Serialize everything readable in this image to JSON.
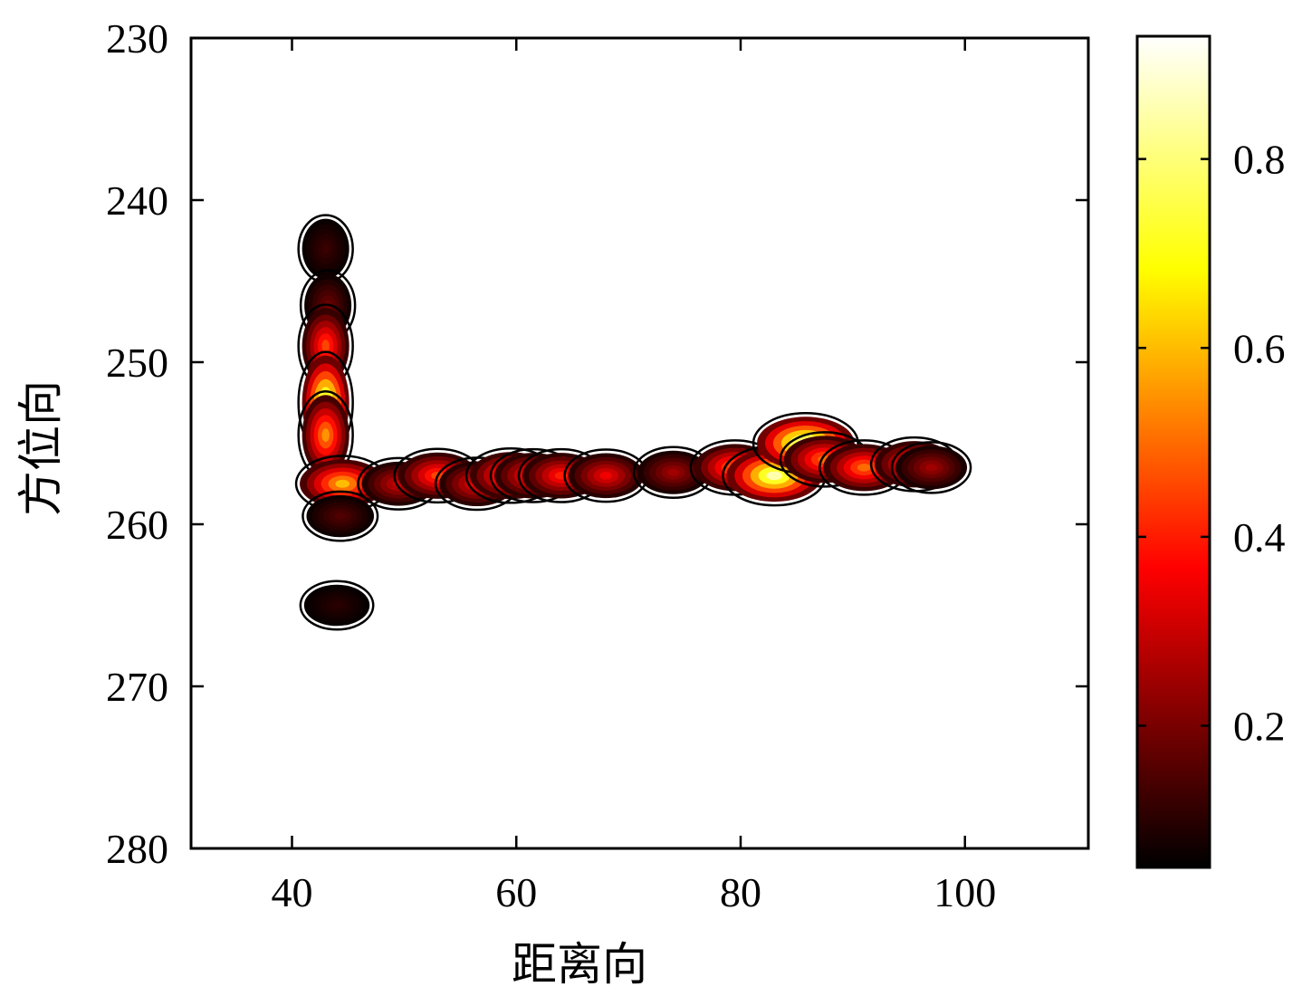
{
  "chart_data": {
    "type": "heatmap",
    "title": "",
    "xlabel": "距离向",
    "ylabel": "方位向",
    "xlim": [
      31,
      111
    ],
    "ylim": [
      230,
      280
    ],
    "y_reversed": true,
    "xticks": [
      40,
      60,
      80,
      100
    ],
    "yticks": [
      230,
      240,
      250,
      260,
      270,
      280
    ],
    "colorbar": {
      "colormap": "hot",
      "range": [
        0.05,
        0.93
      ],
      "ticks": [
        0.2,
        0.4,
        0.6,
        0.8
      ],
      "tick_labels": [
        "0.2",
        "0.4",
        "0.6",
        "0.8"
      ]
    },
    "grid": false,
    "note_values": "approximate intensity peaks of the image (x = 距离向, y = 方位向, v = normalized intensity)",
    "peaks": [
      {
        "x": 43.0,
        "y": 243.0,
        "v": 0.12
      },
      {
        "x": 43.2,
        "y": 246.5,
        "v": 0.18
      },
      {
        "x": 43.0,
        "y": 249.0,
        "v": 0.45
      },
      {
        "x": 43.0,
        "y": 252.5,
        "v": 0.85
      },
      {
        "x": 43.0,
        "y": 254.5,
        "v": 0.55
      },
      {
        "x": 44.5,
        "y": 257.5,
        "v": 0.6
      },
      {
        "x": 44.3,
        "y": 259.5,
        "v": 0.15
      },
      {
        "x": 44.0,
        "y": 265.0,
        "v": 0.1
      },
      {
        "x": 49.5,
        "y": 257.5,
        "v": 0.3
      },
      {
        "x": 53.0,
        "y": 257.0,
        "v": 0.45
      },
      {
        "x": 56.5,
        "y": 257.5,
        "v": 0.35
      },
      {
        "x": 59.5,
        "y": 257.0,
        "v": 0.5
      },
      {
        "x": 61.5,
        "y": 257.0,
        "v": 0.4
      },
      {
        "x": 64.0,
        "y": 257.0,
        "v": 0.4
      },
      {
        "x": 68.0,
        "y": 257.0,
        "v": 0.35
      },
      {
        "x": 74.0,
        "y": 256.8,
        "v": 0.25
      },
      {
        "x": 79.5,
        "y": 256.5,
        "v": 0.5
      },
      {
        "x": 83.0,
        "y": 257.0,
        "v": 0.85
      },
      {
        "x": 85.8,
        "y": 255.0,
        "v": 0.9
      },
      {
        "x": 87.5,
        "y": 256.0,
        "v": 0.5
      },
      {
        "x": 91.0,
        "y": 256.5,
        "v": 0.5
      },
      {
        "x": 95.5,
        "y": 256.3,
        "v": 0.45
      },
      {
        "x": 97.0,
        "y": 256.5,
        "v": 0.25
      }
    ]
  }
}
